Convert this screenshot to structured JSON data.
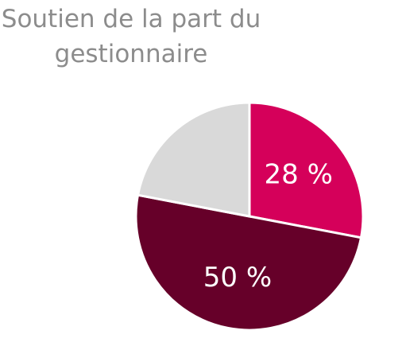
{
  "chart_data": {
    "type": "pie",
    "title": "Soutien de la part du gestionnaire",
    "values": [
      28,
      50,
      22
    ],
    "value_labels": [
      "28 %",
      "50 %",
      null
    ],
    "colors": [
      "#d5005a",
      "#660029",
      "#d9d9d9"
    ]
  }
}
